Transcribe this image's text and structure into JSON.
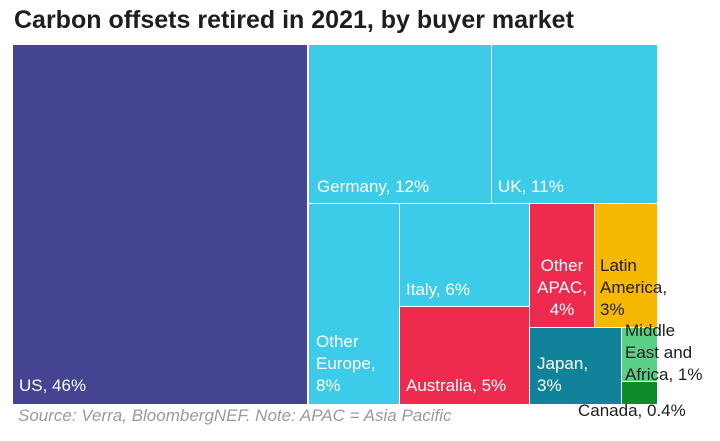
{
  "chart_data": {
    "type": "treemap",
    "title": "Carbon offsets retired in 2021, by buyer market",
    "source": "Source: Verra, BloombergNEF. Note: APAC = Asia Pacific",
    "items": [
      {
        "name": "US",
        "label": "US, 46%",
        "value": 46,
        "color": "#444493",
        "text_color": "#ffffff"
      },
      {
        "name": "Germany",
        "label": "Germany, 12%",
        "value": 12,
        "color": "#3ccbe8",
        "text_color": "#ffffff"
      },
      {
        "name": "UK",
        "label": "UK, 11%",
        "value": 11,
        "color": "#3ccbe8",
        "text_color": "#ffffff"
      },
      {
        "name": "Other Europe",
        "label": "Other\nEurope,\n8%",
        "value": 8,
        "color": "#3ccbe8",
        "text_color": "#ffffff"
      },
      {
        "name": "Italy",
        "label": "Italy, 6%",
        "value": 6,
        "color": "#3ccbe8",
        "text_color": "#ffffff"
      },
      {
        "name": "Australia",
        "label": "Australia, 5%",
        "value": 5,
        "color": "#ee2a4e",
        "text_color": "#ffffff"
      },
      {
        "name": "Other APAC",
        "label": "Other\nAPAC,\n4%",
        "value": 4,
        "color": "#ee2a4e",
        "text_color": "#ffffff"
      },
      {
        "name": "Japan",
        "label": "Japan,\n3%",
        "value": 3,
        "color": "#10839a",
        "text_color": "#ffffff"
      },
      {
        "name": "Latin America",
        "label": "Latin\nAmerica,\n3%",
        "value": 3,
        "color": "#f6b800",
        "text_color": "#1e1e1e"
      },
      {
        "name": "Middle East and Africa",
        "label": "Middle\nEast and\nAfrica, 1%",
        "value": 1,
        "color": "#5ccf86",
        "text_color": "#1e1e1e"
      },
      {
        "name": "Canada",
        "label": "Canada, 0.4%",
        "value": 0.4,
        "color": "#0f8a2a",
        "text_color": "#1e1e1e"
      }
    ]
  }
}
